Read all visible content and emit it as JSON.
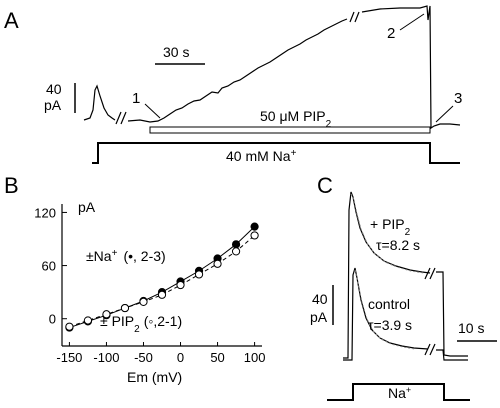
{
  "panelA": {
    "letter": "A",
    "time_scale": "30 s",
    "current_scale_value": "40",
    "current_scale_unit": "pA",
    "markers": [
      "1",
      "2",
      "3"
    ],
    "pip2_label_prefix": "50 μM PIP",
    "pip2_label_sub": "2",
    "na_label_prefix": "40 mM Na",
    "na_label_sup": "+"
  },
  "panelB": {
    "letter": "B",
    "y_unit": "pA",
    "xlabel": "Em (mV)",
    "annotation_na_prefix": "±Na",
    "annotation_na_sup": "+",
    "annotation_na_rest": "(•, 2-3)",
    "annotation_pip2_prefix": "± PIP",
    "annotation_pip2_sub": "2",
    "annotation_pip2_rest": "(◦,2-1)"
  },
  "panelC": {
    "letter": "C",
    "pip2_label_prefix": "+ PIP",
    "pip2_label_sub": "2",
    "pip2_tau": "τ=8.2 s",
    "control_label": "control",
    "control_tau": "τ=3.9 s",
    "current_scale_value": "40",
    "current_scale_unit": "pA",
    "time_scale": "10 s",
    "na_label": "Na",
    "na_sup": "+"
  },
  "chart_data": {
    "type": "scatter",
    "x_ticks": [
      -150,
      -100,
      -50,
      0,
      50,
      100
    ],
    "y_ticks": [
      0,
      60,
      120
    ],
    "xlim": [
      -160,
      110
    ],
    "ylim": [
      -15,
      125
    ],
    "xlabel": "Em (mV)",
    "ylabel": "pA",
    "series": [
      {
        "marker": "filled",
        "line": "solid",
        "x": [
          -150,
          -125,
          -100,
          -75,
          -50,
          -25,
          0,
          25,
          50,
          75,
          100
        ],
        "y": [
          -10,
          -3,
          4,
          12,
          20,
          30,
          42,
          54,
          68,
          84,
          104
        ]
      },
      {
        "marker": "open",
        "line": "dashed",
        "x": [
          -150,
          -125,
          -100,
          -75,
          -50,
          -25,
          0,
          25,
          50,
          75,
          100
        ],
        "y": [
          -9,
          -2,
          5,
          12,
          19,
          27,
          38,
          50,
          62,
          76,
          94
        ]
      }
    ]
  }
}
